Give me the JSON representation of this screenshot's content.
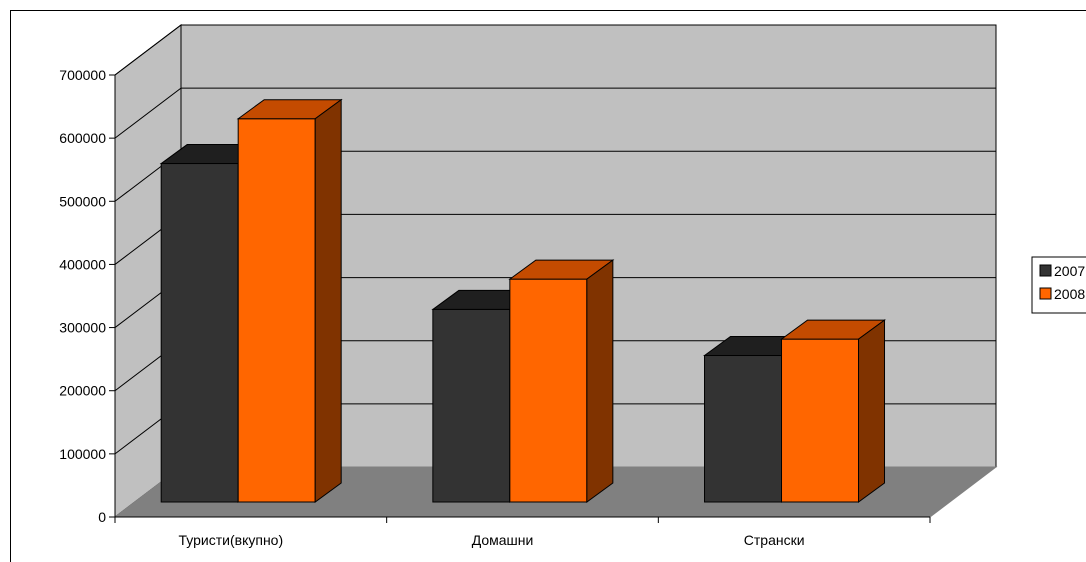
{
  "chart_data": {
    "type": "bar",
    "title": "",
    "xlabel": "",
    "ylabel": "",
    "categories": [
      "Туристи(вкупно)",
      "Домашни",
      "Странски"
    ],
    "series": [
      {
        "name": "2007",
        "values": [
          536000,
          305000,
          232000
        ]
      },
      {
        "name": "2008",
        "values": [
          607000,
          353000,
          258000
        ]
      }
    ],
    "ylim": [
      0,
      700000
    ],
    "yticks": [
      "0",
      "100000",
      "200000",
      "300000",
      "400000",
      "500000",
      "600000",
      "700000"
    ],
    "legend": "right",
    "grid": true,
    "three_d": true
  },
  "colors": {
    "series": [
      {
        "front": "#333333",
        "top": "#1f1f1f",
        "side": "#0e0e0e"
      },
      {
        "front": "#ff6600",
        "top": "#c44b00",
        "side": "#803300"
      }
    ],
    "back_wall": "#c0c0c0",
    "side_wall": "#c0c0c0",
    "floor": "#808080",
    "gridline": "#000000"
  }
}
